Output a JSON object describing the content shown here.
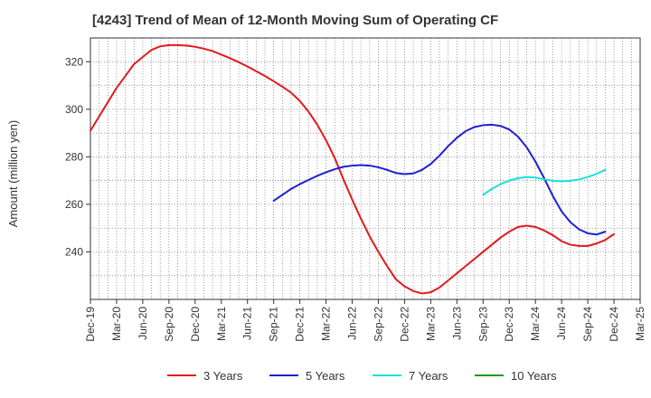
{
  "chart_data": {
    "type": "line",
    "title": "[4243]  Trend of Mean of 12-Month Moving Sum of Operating CF",
    "xlabel": "",
    "ylabel": "Amount (million yen)",
    "ylim": [
      220,
      330
    ],
    "yticks": [
      240,
      260,
      280,
      300,
      320
    ],
    "grid": true,
    "legend_position": "bottom",
    "x_start": "Dec-19",
    "x_tick_labels": [
      "Dec-19",
      "Mar-20",
      "Jun-20",
      "Sep-20",
      "Dec-20",
      "Mar-21",
      "Jun-21",
      "Sep-21",
      "Dec-21",
      "Mar-22",
      "Jun-22",
      "Sep-22",
      "Dec-22",
      "Mar-23",
      "Jun-23",
      "Sep-23",
      "Dec-23",
      "Mar-24",
      "Jun-24",
      "Sep-24",
      "Dec-24",
      "Mar-25"
    ],
    "series": [
      {
        "name": "3 Years",
        "color": "#e31a1c",
        "start_month_index": 0,
        "values": [
          291,
          297,
          303,
          309,
          314,
          319,
          322,
          325,
          326.5,
          327,
          327,
          326.8,
          326.3,
          325.5,
          324.5,
          323,
          321.5,
          319.8,
          318,
          316,
          314,
          311.8,
          309.5,
          307,
          303.5,
          299,
          293.5,
          287,
          279.5,
          270.5,
          262,
          254,
          246.5,
          240,
          234,
          228.5,
          225.5,
          223.5,
          222.5,
          223,
          225,
          228,
          231,
          234,
          237,
          240,
          243,
          246,
          248.5,
          250.5,
          251,
          250.5,
          249,
          247,
          244.5,
          243,
          242.5,
          242.5,
          243.5,
          245,
          247.5
        ]
      },
      {
        "name": "5 Years",
        "color": "#1f1fd1",
        "start_month_index": 21,
        "values": [
          261.5,
          264,
          266.5,
          268.5,
          270.3,
          272,
          273.5,
          274.8,
          275.8,
          276.3,
          276.5,
          276.3,
          275.6,
          274.5,
          273.2,
          272.7,
          273,
          274.5,
          277,
          280.5,
          284.5,
          288,
          290.8,
          292.5,
          293.3,
          293.5,
          293,
          291.5,
          288.5,
          284,
          278,
          271,
          263.5,
          257,
          252.5,
          249.5,
          247.8,
          247.3,
          248.5
        ]
      },
      {
        "name": "7 Years",
        "color": "#19e0e0",
        "start_month_index": 45,
        "values": [
          264,
          266.5,
          268.5,
          270,
          271,
          271.5,
          271.3,
          270.5,
          269.9,
          269.7,
          269.9,
          270.5,
          271.5,
          272.8,
          274.5
        ]
      },
      {
        "name": "10 Years",
        "color": "#1f9a1f",
        "start_month_index": 0,
        "values": []
      }
    ]
  }
}
